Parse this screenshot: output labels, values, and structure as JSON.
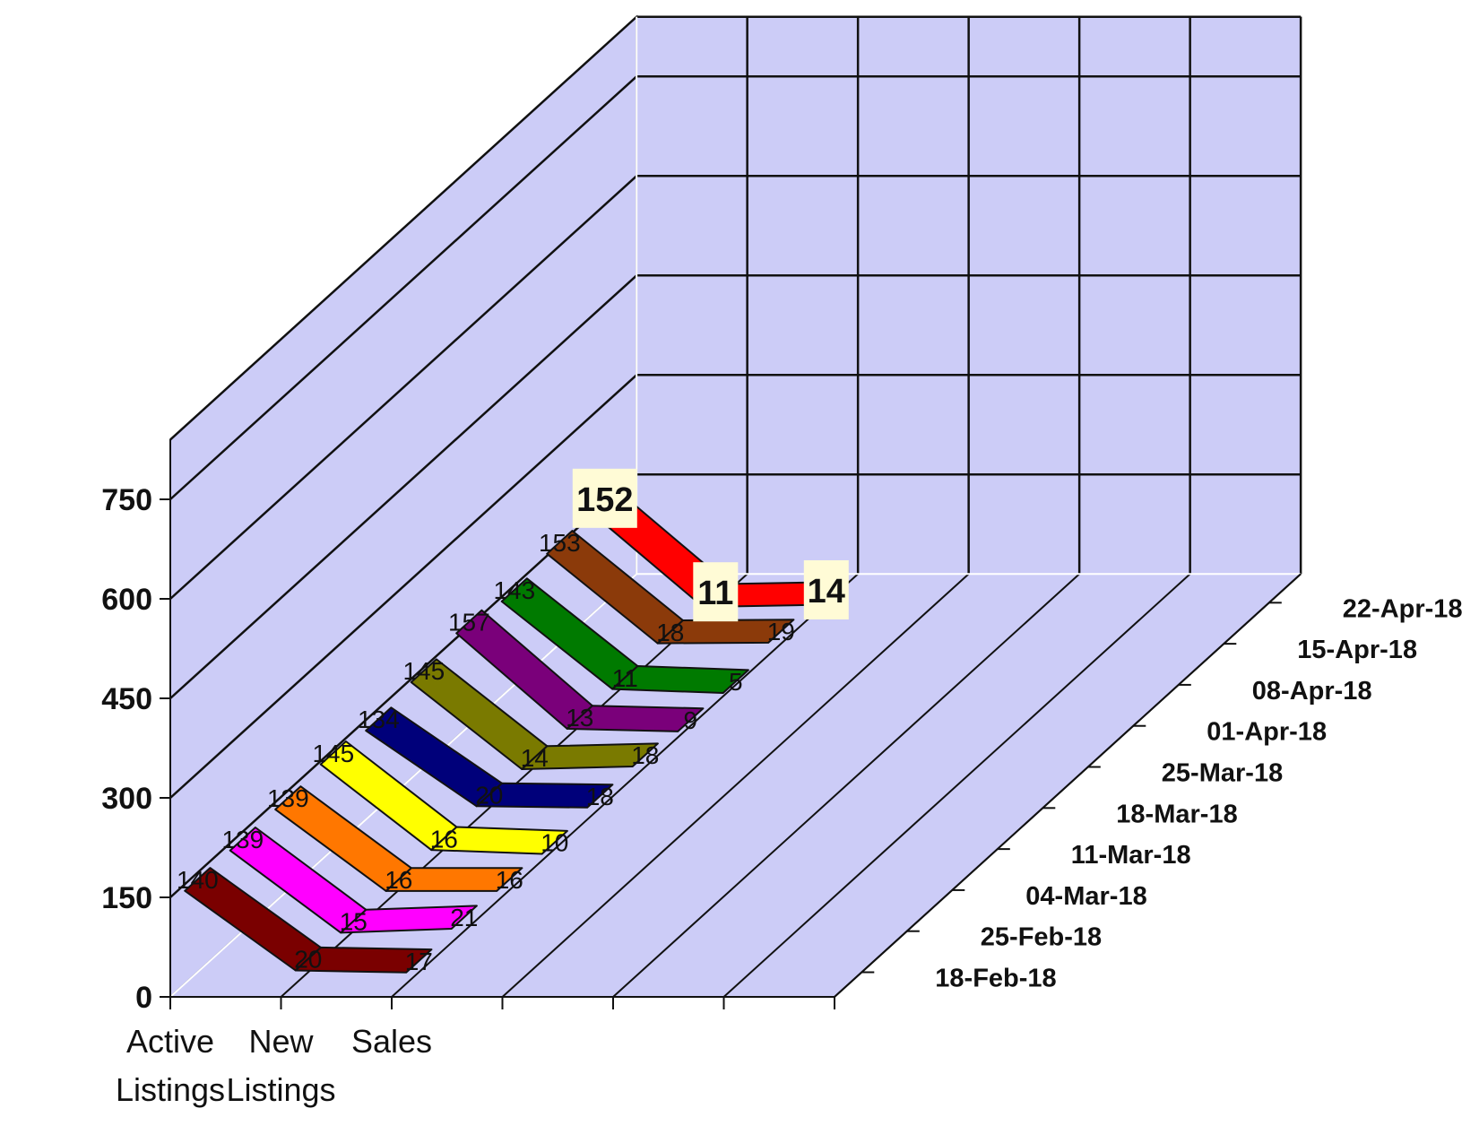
{
  "chart_data": {
    "type": "line",
    "style": "3d-ribbon",
    "categories": [
      "Active Listings",
      "New Listings",
      "Sales"
    ],
    "category_label_lines": [
      [
        "Active",
        "Listings"
      ],
      [
        "New",
        "Listings"
      ],
      [
        "Sales"
      ]
    ],
    "y_ticks": [
      0,
      150,
      300,
      450,
      600,
      750
    ],
    "ylim": [
      0,
      840
    ],
    "grid": true,
    "wall_color": "#ccccf7",
    "series": [
      {
        "name": "18-Feb-18",
        "values": [
          140,
          20,
          17
        ],
        "color": "#7a0000"
      },
      {
        "name": "25-Feb-18",
        "values": [
          139,
          15,
          21
        ],
        "color": "#ff00ff"
      },
      {
        "name": "04-Mar-18",
        "values": [
          139,
          16,
          16
        ],
        "color": "#ff7700"
      },
      {
        "name": "11-Mar-18",
        "values": [
          145,
          16,
          10
        ],
        "color": "#ffff00"
      },
      {
        "name": "18-Mar-18",
        "values": [
          134,
          20,
          18
        ],
        "color": "#00007a"
      },
      {
        "name": "25-Mar-18",
        "values": [
          145,
          14,
          18
        ],
        "color": "#7a7a00"
      },
      {
        "name": "01-Apr-18",
        "values": [
          157,
          13,
          9
        ],
        "color": "#7a007a"
      },
      {
        "name": "08-Apr-18",
        "values": [
          143,
          11,
          5
        ],
        "color": "#007a00"
      },
      {
        "name": "15-Apr-18",
        "values": [
          153,
          18,
          19
        ],
        "color": "#8b3a0a"
      },
      {
        "name": "22-Apr-18",
        "values": [
          152,
          11,
          14
        ],
        "color": "#ff0000",
        "highlight": true
      }
    ]
  }
}
